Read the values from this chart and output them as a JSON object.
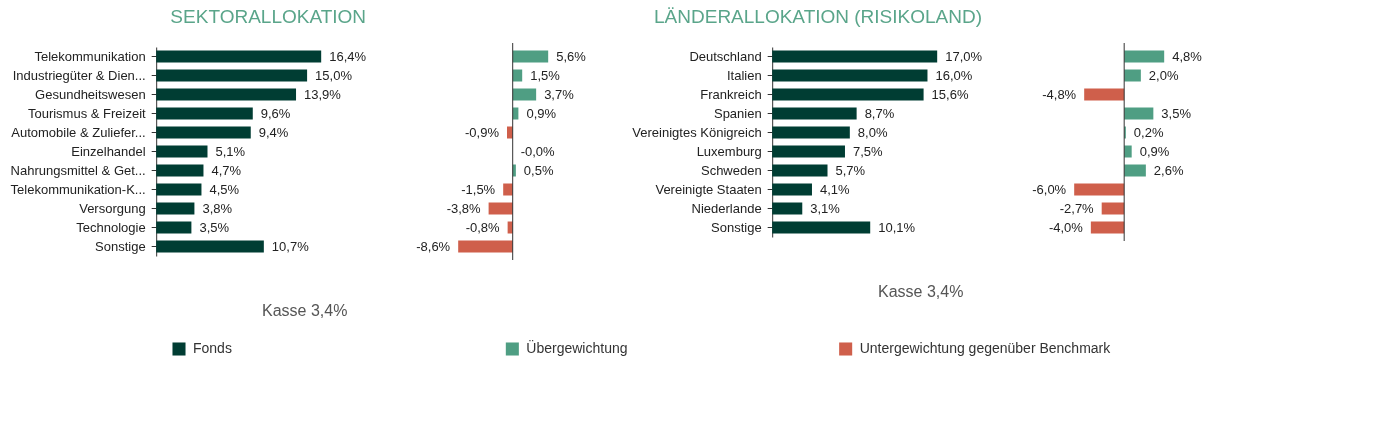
{
  "chart_data": [
    {
      "type": "bar",
      "orientation": "horizontal",
      "title": "SEKTORALLOKATION",
      "legend": "bottom",
      "categories": [
        "Telekommunikation",
        "Industriegüter & Dien...",
        "Gesundheitswesen",
        "Tourismus & Freizeit",
        "Automobile & Zuliefer...",
        "Einzelhandel",
        "Nahrungsmittel & Get...",
        "Telekommunikation-K...",
        "Versorgung",
        "Technologie",
        "Sonstige"
      ],
      "series": [
        {
          "name": "Fonds",
          "color": "#003d33",
          "values": [
            16.4,
            15.0,
            13.9,
            9.6,
            9.4,
            5.1,
            4.7,
            4.5,
            3.8,
            3.5,
            10.7
          ],
          "value_labels": [
            "16,4%",
            "15,0%",
            "13,9%",
            "9,6%",
            "9,4%",
            "5,1%",
            "4,7%",
            "4,5%",
            "3,8%",
            "3,5%",
            "10,7%"
          ]
        }
      ],
      "annotations": [
        "Kasse 3,4%"
      ]
    },
    {
      "type": "bar",
      "orientation": "horizontal",
      "legend": "bottom",
      "tick_labels": false,
      "categories": [
        "Telekommunikation",
        "Industriegüter & Dien...",
        "Gesundheitswesen",
        "Tourismus & Freizeit",
        "Automobile & Zuliefer...",
        "Einzelhandel",
        "Nahrungsmittel & Get...",
        "Telekommunikation-K...",
        "Versorgung",
        "Technologie",
        "Sonstige"
      ],
      "series": [
        {
          "name": "Übergewichtung",
          "color": "#4f9e83",
          "values": [
            5.6,
            1.5,
            3.7,
            0.9,
            null,
            null,
            0.5,
            null,
            null,
            null,
            null
          ],
          "value_labels": [
            "5,6%",
            "1,5%",
            "3,7%",
            "0,9%",
            null,
            null,
            "0,5%",
            null,
            null,
            null,
            null
          ]
        },
        {
          "name": "Untergewichtung gegenüber Benchmark",
          "color": "#cf5f4b",
          "values": [
            null,
            null,
            null,
            null,
            -0.9,
            -0.0,
            null,
            -1.5,
            -3.8,
            -0.8,
            -8.6
          ],
          "value_labels": [
            null,
            null,
            null,
            null,
            "-0,9%",
            "-0,0%",
            null,
            "-1,5%",
            "-3,8%",
            "-0,8%",
            "-8,6%"
          ]
        }
      ]
    },
    {
      "type": "bar",
      "orientation": "horizontal",
      "title": "LÄNDERALLOKATION (RISIKOLAND)",
      "legend": "bottom",
      "categories": [
        "Deutschland",
        "Italien",
        "Frankreich",
        "Spanien",
        "Vereinigtes Königreich",
        "Luxemburg",
        "Schweden",
        "Vereinigte Staaten",
        "Niederlande",
        "Sonstige"
      ],
      "series": [
        {
          "name": "Fonds",
          "color": "#003d33",
          "values": [
            17.0,
            16.0,
            15.6,
            8.7,
            8.0,
            7.5,
            5.7,
            4.1,
            3.1,
            10.1
          ],
          "value_labels": [
            "17,0%",
            "16,0%",
            "15,6%",
            "8,7%",
            "8,0%",
            "7,5%",
            "5,7%",
            "4,1%",
            "3,1%",
            "10,1%"
          ]
        }
      ],
      "annotations": [
        "Kasse 3,4%"
      ]
    },
    {
      "type": "bar",
      "orientation": "horizontal",
      "legend": "bottom",
      "tick_labels": false,
      "categories": [
        "Deutschland",
        "Italien",
        "Frankreich",
        "Spanien",
        "Vereinigtes Königreich",
        "Luxemburg",
        "Schweden",
        "Vereinigte Staaten",
        "Niederlande",
        "Sonstige"
      ],
      "series": [
        {
          "name": "Übergewichtung",
          "color": "#4f9e83",
          "values": [
            4.8,
            2.0,
            null,
            3.5,
            0.2,
            0.9,
            2.6,
            null,
            null,
            null
          ],
          "value_labels": [
            "4,8%",
            "2,0%",
            null,
            "3,5%",
            "0,2%",
            "0,9%",
            "2,6%",
            null,
            null,
            null
          ]
        },
        {
          "name": "Untergewichtung gegenüber Benchmark",
          "color": "#cf5f4b",
          "values": [
            null,
            null,
            -4.8,
            null,
            null,
            null,
            null,
            -6.0,
            -2.7,
            -4.0
          ],
          "value_labels": [
            null,
            null,
            "-4,8%",
            null,
            null,
            null,
            null,
            "-6,0%",
            "-2,7%",
            "-4,0%"
          ]
        }
      ]
    }
  ]
}
